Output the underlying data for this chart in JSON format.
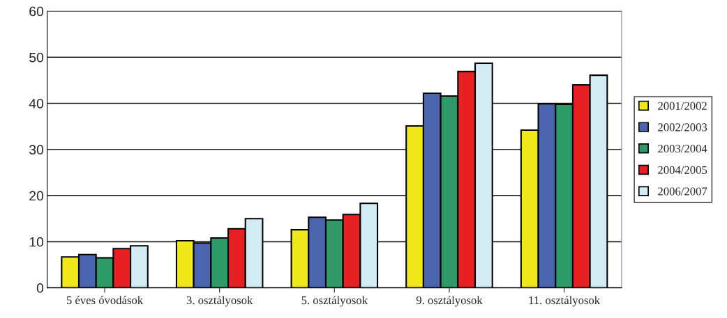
{
  "chart_data": {
    "type": "bar",
    "categories": [
      "5 éves óvodások",
      "3. osztályosok",
      "5. osztályosok",
      "9. osztályosok",
      "11. osztályosok"
    ],
    "series": [
      {
        "name": "2001/2002",
        "color": "#f0e818",
        "values": [
          6.7,
          10.2,
          12.6,
          35.1,
          34.2
        ]
      },
      {
        "name": "2002/2003",
        "color": "#4a64b0",
        "values": [
          7.2,
          9.7,
          15.3,
          42.2,
          39.9
        ]
      },
      {
        "name": "2003/2004",
        "color": "#2e9a68",
        "values": [
          6.5,
          10.8,
          14.7,
          41.6,
          39.8
        ]
      },
      {
        "name": "2004/2005",
        "color": "#e82024",
        "values": [
          8.5,
          12.8,
          15.9,
          46.9,
          44.0
        ]
      },
      {
        "name": "2006/2007",
        "color": "#d2ecf4",
        "values": [
          9.1,
          15.0,
          18.3,
          48.7,
          46.1
        ]
      }
    ],
    "ylim": [
      0,
      60
    ],
    "yticks": [
      0,
      10,
      20,
      30,
      40,
      50,
      60
    ],
    "grid": "y",
    "legend": "right"
  }
}
